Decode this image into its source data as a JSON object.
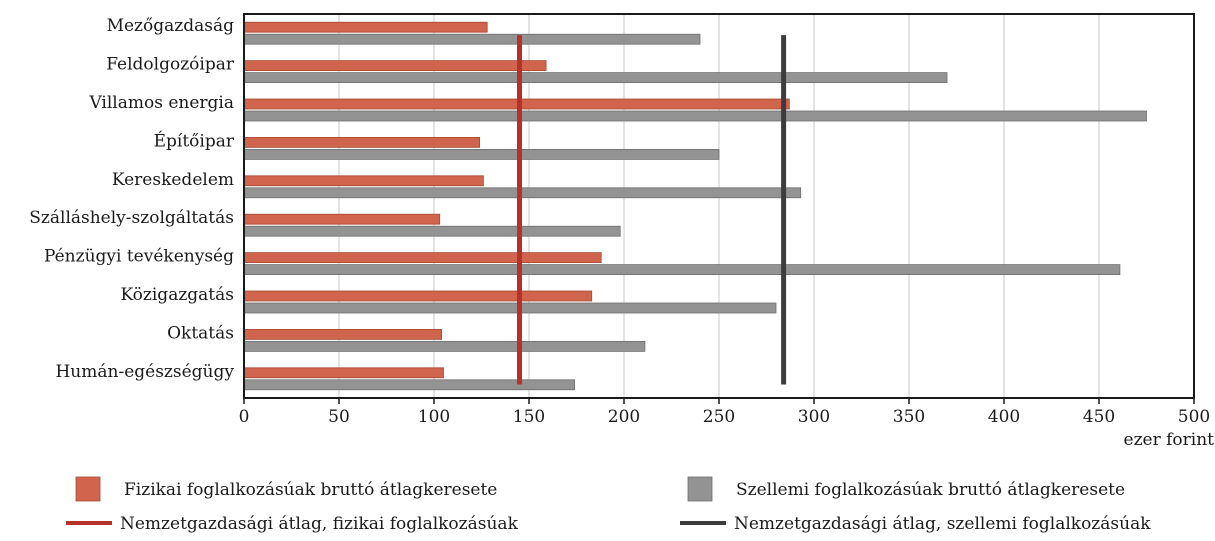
{
  "chart_data": {
    "type": "bar",
    "orientation": "horizontal",
    "categories": [
      "Mezőgazdaság",
      "Feldolgozóipar",
      "Villamos energia",
      "Építőipar",
      "Kereskedelem",
      "Szálláshely-szolgáltatás",
      "Pénzügyi tevékenység",
      "Közigazgatás",
      "Oktatás",
      "Humán-egészségügy"
    ],
    "series": [
      {
        "name": "Fizikai foglalkozásúak bruttó átlagkeresete",
        "color": "#d0644c",
        "values": [
          128,
          159,
          287,
          124,
          126,
          103,
          188,
          183,
          104,
          105
        ]
      },
      {
        "name": "Szellemi foglalkozásúak bruttó átlagkeresete",
        "color": "#939393",
        "values": [
          240,
          370,
          475,
          250,
          293,
          198,
          461,
          280,
          211,
          174
        ]
      }
    ],
    "reference_lines": [
      {
        "name": "Nemzetgazdasági átlag, fizikai foglalkozásúak",
        "value": 145,
        "color": "#b8302a"
      },
      {
        "name": "Nemzetgazdasági átlag, szellemi foglalkozásúak",
        "value": 284,
        "color": "#3c3c3c"
      }
    ],
    "xlim": [
      0,
      500
    ],
    "xticks": [
      0,
      50,
      100,
      150,
      200,
      250,
      300,
      350,
      400,
      450,
      500
    ],
    "xlabel": "ezer forint",
    "grid": "vertical",
    "legend_position": "bottom"
  }
}
